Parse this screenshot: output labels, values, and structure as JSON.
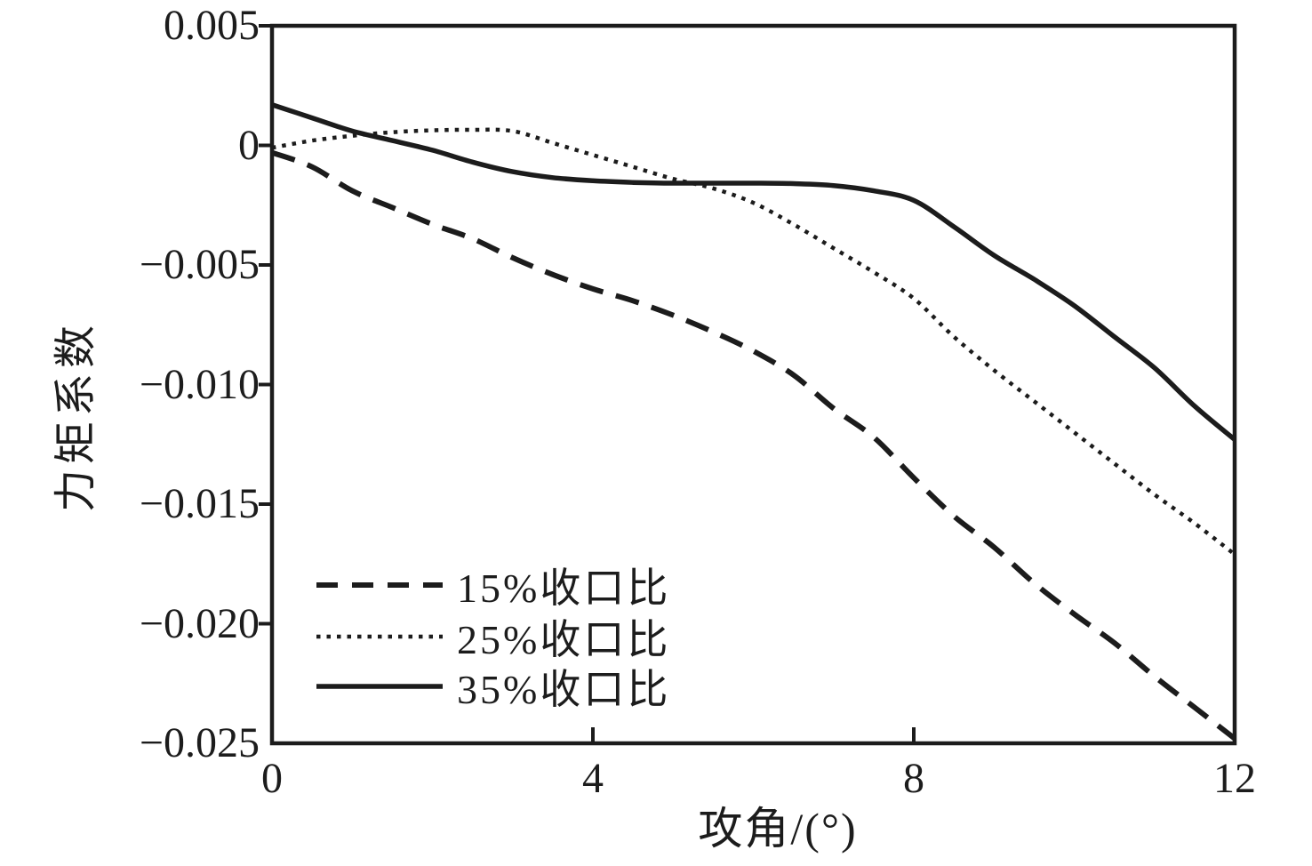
{
  "figure": {
    "background": "#ffffff",
    "ink_color": "#1c1c1c"
  },
  "chart_data": {
    "type": "line",
    "title": "",
    "xlabel": "攻角/(°)",
    "ylabel": "力矩系数",
    "xlim": [
      0,
      12
    ],
    "ylim": [
      -0.025,
      0.005
    ],
    "grid": false,
    "frame": "full-box",
    "legend_position": "inside-lower-left",
    "x_ticks": [
      {
        "value": 0,
        "label": "0"
      },
      {
        "value": 4,
        "label": "4"
      },
      {
        "value": 8,
        "label": "8"
      },
      {
        "value": 12,
        "label": "12"
      }
    ],
    "y_ticks": [
      {
        "value": 0.005,
        "label": "0.005"
      },
      {
        "value": 0,
        "label": "0"
      },
      {
        "value": -0.005,
        "label": "−0.005"
      },
      {
        "value": -0.01,
        "label": "−0.010"
      },
      {
        "value": -0.015,
        "label": "−0.015"
      },
      {
        "value": -0.02,
        "label": "−0.020"
      },
      {
        "value": -0.025,
        "label": "−0.025"
      }
    ],
    "x": [
      0,
      0.5,
      1,
      1.5,
      2,
      2.5,
      3,
      3.5,
      4,
      4.5,
      5,
      5.5,
      6,
      6.5,
      7,
      7.5,
      8,
      8.5,
      9,
      9.5,
      10,
      10.5,
      11,
      11.5,
      12
    ],
    "series": [
      {
        "name": "15%收口比",
        "line_style": "dashed",
        "color": "#1c1c1c",
        "values": [
          -0.0003,
          -0.0009,
          -0.0019,
          -0.0026,
          -0.0033,
          -0.0039,
          -0.0047,
          -0.0054,
          -0.006,
          -0.0065,
          -0.0071,
          -0.0078,
          -0.0086,
          -0.0096,
          -0.011,
          -0.0122,
          -0.0139,
          -0.0155,
          -0.0168,
          -0.0183,
          -0.0196,
          -0.0208,
          -0.0222,
          -0.0235,
          -0.0248
        ]
      },
      {
        "name": "25%收口比",
        "line_style": "dotted",
        "color": "#1c1c1c",
        "values": [
          -0.0001,
          0.0002,
          0.0004,
          0.00055,
          0.00063,
          0.00065,
          0.0006,
          0.0001,
          -0.0004,
          -0.0009,
          -0.0014,
          -0.0018,
          -0.0024,
          -0.0033,
          -0.0043,
          -0.0053,
          -0.0064,
          -0.008,
          -0.0094,
          -0.0107,
          -0.012,
          -0.0133,
          -0.0146,
          -0.0158,
          -0.0171
        ]
      },
      {
        "name": "35%收口比",
        "line_style": "solid",
        "color": "#1c1c1c",
        "values": [
          0.0017,
          0.00115,
          0.0006,
          0.0002,
          -0.0002,
          -0.0007,
          -0.0011,
          -0.00135,
          -0.00148,
          -0.00155,
          -0.00158,
          -0.00158,
          -0.00158,
          -0.0016,
          -0.00168,
          -0.0019,
          -0.0023,
          -0.0034,
          -0.0046,
          -0.0056,
          -0.0067,
          -0.008,
          -0.0093,
          -0.0109,
          -0.0123
        ]
      }
    ]
  }
}
